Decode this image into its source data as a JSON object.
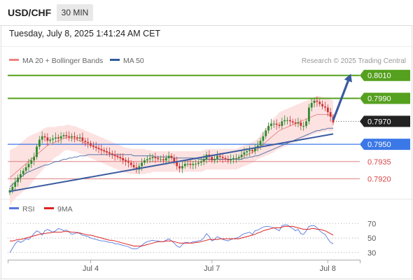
{
  "header": {
    "pair": "USD/CHF",
    "timeframe": "30 MIN",
    "datetime": "Tuesday, July 8, 2025 1:41:24 AM CET"
  },
  "colors": {
    "bollinger": "#e87878",
    "ma50": "#2f5b9a",
    "resistance": "#55a01e",
    "support_blue": "#3b78e7",
    "support_red": "#d94646",
    "rsi": "#5577dd",
    "rsi_ma": "#dd2222",
    "bull": "#2e8b2e",
    "bear": "#cc3333",
    "trend": "#3a5ba0"
  },
  "chart_data": [
    {
      "type": "candlestick",
      "legend": [
        {
          "label": "MA 20 + Bollinger Bands",
          "color": "#f08080"
        },
        {
          "label": "MA 50",
          "color": "#2f5b9a"
        }
      ],
      "credit": "Research © 2025 Trading Central",
      "ylim": [
        0.7905,
        0.8022
      ],
      "last_price": 0.797,
      "levels": [
        {
          "value": 0.801,
          "label": "0.8010",
          "kind": "resistance",
          "style": "solid",
          "flag": true
        },
        {
          "value": 0.799,
          "label": "0.7990",
          "kind": "resistance",
          "style": "solid",
          "flag": true
        },
        {
          "value": 0.797,
          "label": "0.7970",
          "kind": "current",
          "style": "dotted",
          "flag": true
        },
        {
          "value": 0.795,
          "label": "0.7950",
          "kind": "pivot",
          "style": "solid",
          "flag": true
        },
        {
          "value": 0.7935,
          "label": "0.7935",
          "kind": "support",
          "style": "thin",
          "flag": false
        },
        {
          "value": 0.792,
          "label": "0.7920",
          "kind": "support",
          "style": "thin",
          "flag": false
        }
      ],
      "trendlines": [
        {
          "from": {
            "bar": 0,
            "price": 0.7909
          },
          "to": {
            "bar": 120,
            "price": 0.7959
          }
        },
        {
          "from": {
            "bar": 120,
            "price": 0.7971
          },
          "to": {
            "bar": 126,
            "price": 0.8008
          },
          "arrow": true
        }
      ],
      "x_ticks": [
        {
          "bar": 30,
          "label": "Jul 4"
        },
        {
          "bar": 75,
          "label": "Jul 7"
        },
        {
          "bar": 118,
          "label": "Jul 8"
        }
      ],
      "ohlc_close": [
        0.791,
        0.7913,
        0.7917,
        0.7921,
        0.7924,
        0.7927,
        0.793,
        0.7933,
        0.7936,
        0.7939,
        0.7948,
        0.7954,
        0.7957,
        0.7956,
        0.7953,
        0.7954,
        0.7955,
        0.7956,
        0.7955,
        0.7957,
        0.7958,
        0.7957,
        0.7956,
        0.7957,
        0.7956,
        0.7955,
        0.7956,
        0.7953,
        0.7952,
        0.7951,
        0.7949,
        0.7948,
        0.7947,
        0.7946,
        0.7945,
        0.7944,
        0.7943,
        0.7942,
        0.7941,
        0.794,
        0.7939,
        0.7938,
        0.7936,
        0.7935,
        0.7934,
        0.7932,
        0.793,
        0.7928,
        0.7931,
        0.7934,
        0.7936,
        0.7937,
        0.7938,
        0.7939,
        0.7938,
        0.7937,
        0.7937,
        0.7936,
        0.7938,
        0.794,
        0.7938,
        0.7935,
        0.7931,
        0.7929,
        0.7931,
        0.7933,
        0.7933,
        0.7932,
        0.7933,
        0.7933,
        0.7934,
        0.7935,
        0.7937,
        0.7941,
        0.7939,
        0.7936,
        0.7937,
        0.794,
        0.7939,
        0.7938,
        0.7937,
        0.7936,
        0.7937,
        0.7938,
        0.7938,
        0.7939,
        0.7941,
        0.7943,
        0.7944,
        0.7945,
        0.7944,
        0.7947,
        0.7949,
        0.7953,
        0.7957,
        0.7962,
        0.7966,
        0.7968,
        0.7968,
        0.7967,
        0.7966,
        0.797,
        0.7971,
        0.7971,
        0.797,
        0.7969,
        0.7968,
        0.7969,
        0.7966,
        0.7966,
        0.797,
        0.7982,
        0.7986,
        0.7988,
        0.7987,
        0.7985,
        0.7983,
        0.7982,
        0.7978,
        0.7974,
        0.7969
      ],
      "ma20": [
        0.7921,
        0.7923,
        0.7925,
        0.7927,
        0.7929,
        0.7931,
        0.7933,
        0.7935,
        0.7937,
        0.7939,
        0.7941,
        0.7943,
        0.7945,
        0.7947,
        0.7949,
        0.795,
        0.7951,
        0.7952,
        0.7953,
        0.7954,
        0.7955,
        0.7956,
        0.7956,
        0.7955,
        0.7955,
        0.7954,
        0.7953,
        0.7952,
        0.7951,
        0.795,
        0.7949,
        0.7948,
        0.7947,
        0.7946,
        0.7945,
        0.7944,
        0.7943,
        0.7942,
        0.7941,
        0.794,
        0.7939,
        0.7938,
        0.7937,
        0.7936,
        0.7936,
        0.7935,
        0.7935,
        0.7935,
        0.7935,
        0.7935,
        0.7935,
        0.7935,
        0.7935,
        0.7935,
        0.7935,
        0.7935,
        0.7935,
        0.7935,
        0.7935,
        0.7935,
        0.7935,
        0.7935,
        0.7935,
        0.7935,
        0.7935,
        0.7935,
        0.7935,
        0.7935,
        0.7935,
        0.7935,
        0.7935,
        0.7935,
        0.7936,
        0.7937,
        0.7937,
        0.7937,
        0.7937,
        0.7937,
        0.7937,
        0.7937,
        0.7937,
        0.7937,
        0.7937,
        0.7937,
        0.7937,
        0.7938,
        0.7939,
        0.794,
        0.7941,
        0.7942,
        0.7943,
        0.7944,
        0.7946,
        0.7948,
        0.795,
        0.7952,
        0.7954,
        0.7956,
        0.7958,
        0.796,
        0.7962,
        0.7963,
        0.7964,
        0.7965,
        0.7966,
        0.7967,
        0.7968,
        0.7969,
        0.797,
        0.7971,
        0.7972,
        0.7973,
        0.7974,
        0.7975,
        0.7976,
        0.7976,
        0.7976,
        0.7976,
        0.7976,
        0.7975,
        0.7975
      ],
      "ma50": [
        0.7913,
        0.7915,
        0.7917,
        0.7919,
        0.7921,
        0.7923,
        0.7925,
        0.7926,
        0.7927,
        0.7928,
        0.7929,
        0.793,
        0.7931,
        0.7932,
        0.7932,
        0.7933,
        0.7934,
        0.7935,
        0.7935,
        0.7936,
        0.7937,
        0.7937,
        0.7938,
        0.7938,
        0.7939,
        0.7939,
        0.794,
        0.794,
        0.794,
        0.7941,
        0.7941,
        0.7941,
        0.7941,
        0.7941,
        0.7941,
        0.7941,
        0.7941,
        0.7941,
        0.7941,
        0.7941,
        0.7941,
        0.7941,
        0.7941,
        0.7941,
        0.7941,
        0.7941,
        0.794,
        0.794,
        0.794,
        0.794,
        0.794,
        0.794,
        0.794,
        0.794,
        0.7939,
        0.7939,
        0.7939,
        0.7939,
        0.7939,
        0.7939,
        0.7939,
        0.7938,
        0.7938,
        0.7938,
        0.7938,
        0.7938,
        0.7938,
        0.7938,
        0.7938,
        0.7938,
        0.7937,
        0.7937,
        0.7937,
        0.7937,
        0.7937,
        0.7937,
        0.7937,
        0.7937,
        0.7937,
        0.7937,
        0.7937,
        0.7937,
        0.7937,
        0.7937,
        0.7937,
        0.7937,
        0.7937,
        0.7938,
        0.7938,
        0.7939,
        0.7939,
        0.794,
        0.794,
        0.7941,
        0.7942,
        0.7943,
        0.7944,
        0.7945,
        0.7946,
        0.7947,
        0.7948,
        0.7949,
        0.795,
        0.7951,
        0.7952,
        0.7953,
        0.7954,
        0.7955,
        0.7956,
        0.7957,
        0.7958,
        0.7959,
        0.796,
        0.7961,
        0.7962,
        0.7962,
        0.7963,
        0.7963,
        0.7964,
        0.7964,
        0.7964
      ],
      "bb_width": [
        0.0024,
        0.0023,
        0.0022,
        0.0022,
        0.0022,
        0.0022,
        0.0022,
        0.0022,
        0.0021,
        0.002,
        0.0019,
        0.0018,
        0.0018,
        0.0017,
        0.0016,
        0.0015,
        0.0014,
        0.0013,
        0.0013,
        0.0012,
        0.0011,
        0.0011,
        0.0011,
        0.0011,
        0.0011,
        0.0011,
        0.0011,
        0.0011,
        0.0011,
        0.0011,
        0.0011,
        0.0011,
        0.0011,
        0.0011,
        0.0011,
        0.0011,
        0.0011,
        0.0011,
        0.0011,
        0.0011,
        0.0011,
        0.0011,
        0.0011,
        0.0011,
        0.0011,
        0.0011,
        0.0011,
        0.0011,
        0.0011,
        0.0011,
        0.0011,
        0.001,
        0.001,
        0.0009,
        0.0009,
        0.0009,
        0.0009,
        0.0009,
        0.0009,
        0.0009,
        0.0009,
        0.0009,
        0.0009,
        0.0009,
        0.0009,
        0.0009,
        0.0009,
        0.0009,
        0.0009,
        0.0009,
        0.0009,
        0.0009,
        0.0009,
        0.0009,
        0.0009,
        0.0009,
        0.0009,
        0.0009,
        0.0009,
        0.0009,
        0.0009,
        0.0009,
        0.0009,
        0.0009,
        0.0009,
        0.0009,
        0.0009,
        0.0009,
        0.0009,
        0.0009,
        0.0009,
        0.0009,
        0.0009,
        0.001,
        0.0011,
        0.0012,
        0.0013,
        0.0014,
        0.0015,
        0.0015,
        0.0016,
        0.0016,
        0.0016,
        0.0016,
        0.0016,
        0.0016,
        0.0016,
        0.0016,
        0.0016,
        0.0016,
        0.0016,
        0.0016,
        0.0016,
        0.0016,
        0.0016,
        0.0016,
        0.0015,
        0.0015,
        0.0014,
        0.0014,
        0.0013
      ]
    },
    {
      "type": "line",
      "legend": [
        {
          "label": "RSI",
          "color": "#5577dd"
        },
        {
          "label": "9MA",
          "color": "#dd2222"
        }
      ],
      "ylim": [
        25,
        77
      ],
      "yticks": [
        70,
        50,
        30
      ],
      "series": [
        {
          "name": "RSI",
          "values": [
            30,
            36,
            42,
            46,
            44,
            46,
            49,
            48,
            52,
            56,
            60,
            58,
            54,
            60,
            62,
            60,
            58,
            60,
            63,
            62,
            60,
            61,
            58,
            55,
            56,
            58,
            56,
            54,
            53,
            52,
            50,
            49,
            48,
            47,
            46,
            46,
            45,
            44,
            44,
            42,
            42,
            41,
            40,
            39,
            38,
            36,
            35,
            35,
            37,
            40,
            43,
            45,
            46,
            47,
            46,
            46,
            45,
            45,
            47,
            49,
            46,
            43,
            39,
            37,
            41,
            44,
            44,
            43,
            45,
            45,
            46,
            47,
            50,
            56,
            52,
            46,
            48,
            52,
            50,
            48,
            47,
            46,
            48,
            49,
            50,
            51,
            54,
            56,
            57,
            58,
            55,
            60,
            61,
            63,
            65,
            66,
            66,
            65,
            64,
            62,
            60,
            67,
            68,
            68,
            65,
            63,
            60,
            62,
            56,
            55,
            60,
            66,
            67,
            67,
            64,
            60,
            57,
            55,
            49,
            44,
            42
          ]
        },
        {
          "name": "9MA",
          "values": [
            46,
            46,
            47,
            48,
            48,
            49,
            50,
            51,
            52,
            53,
            54,
            55,
            56,
            56,
            57,
            57,
            58,
            58,
            58,
            58,
            59,
            59,
            59,
            58,
            58,
            57,
            57,
            56,
            55,
            54,
            54,
            53,
            52,
            51,
            50,
            49,
            48,
            47,
            47,
            46,
            45,
            44,
            43,
            42,
            41,
            40,
            39,
            39,
            39,
            39,
            40,
            41,
            42,
            43,
            44,
            45,
            45,
            45,
            46,
            46,
            46,
            45,
            44,
            43,
            43,
            43,
            43,
            43,
            43,
            44,
            44,
            45,
            46,
            47,
            48,
            48,
            48,
            48,
            49,
            49,
            49,
            49,
            49,
            49,
            49,
            49,
            50,
            51,
            52,
            53,
            54,
            55,
            57,
            58,
            60,
            61,
            62,
            63,
            64,
            64,
            64,
            65,
            66,
            66,
            66,
            66,
            65,
            64,
            63,
            62,
            62,
            62,
            63,
            63,
            62,
            62,
            61,
            60,
            58,
            56,
            54
          ]
        }
      ]
    }
  ]
}
